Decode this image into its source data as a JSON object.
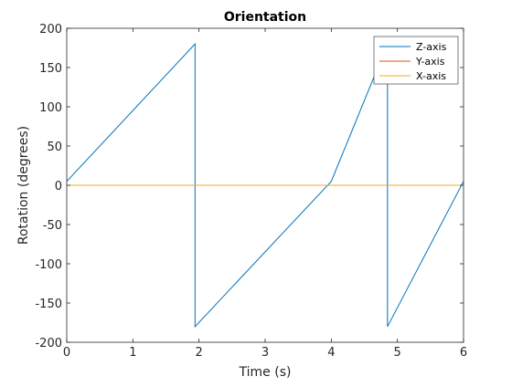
{
  "chart_data": {
    "type": "line",
    "title": "Orientation",
    "xlabel": "Time (s)",
    "ylabel": "Rotation (degrees)",
    "xlim": [
      0,
      6
    ],
    "ylim": [
      -200,
      200
    ],
    "xticks": [
      0,
      1,
      2,
      3,
      4,
      5,
      6
    ],
    "yticks": [
      -200,
      -150,
      -100,
      -50,
      0,
      50,
      100,
      150,
      200
    ],
    "grid": false,
    "legend_position": "top-right",
    "series": [
      {
        "name": "Z-axis",
        "color": "#0072BD",
        "x": [
          0,
          1.94,
          1.94,
          4.0,
          4.85,
          4.85,
          6.0
        ],
        "y": [
          5,
          180,
          -180,
          5,
          180,
          -180,
          5
        ]
      },
      {
        "name": "Y-axis",
        "color": "#D95319",
        "x": [
          0,
          6
        ],
        "y": [
          0,
          0
        ]
      },
      {
        "name": "X-axis",
        "color": "#EDB120",
        "x": [
          0,
          6
        ],
        "y": [
          0,
          0
        ]
      }
    ]
  }
}
